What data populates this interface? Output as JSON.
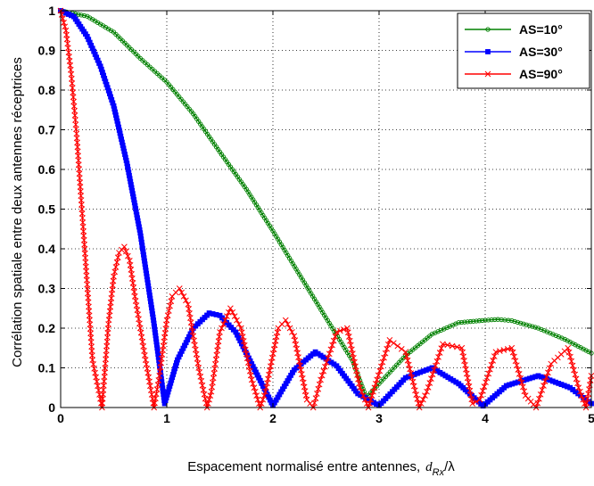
{
  "chart_data": {
    "type": "line",
    "title": "",
    "xlabel": "Espacement normalisé entre antennes,",
    "xlabel_math": {
      "d": "d",
      "sub": "Rx",
      "slash": "/",
      "lambda": "λ"
    },
    "ylabel": "Corrélation spatiale entre deux antennes réceptrices",
    "xlim": [
      0,
      5
    ],
    "ylim": [
      0,
      1
    ],
    "xticks": [
      "0",
      "1",
      "2",
      "3",
      "4",
      "5"
    ],
    "yticks": [
      "0",
      "0.1",
      "0.2",
      "0.3",
      "0.4",
      "0.5",
      "0.6",
      "0.7",
      "0.8",
      "0.9",
      "1"
    ],
    "grid": true,
    "legend_position": "top-right",
    "series": [
      {
        "name": "AS=10°",
        "color": "#008000",
        "marker": "circle",
        "x": [
          0,
          0.25,
          0.5,
          0.75,
          1,
          1.25,
          1.5,
          1.75,
          2,
          2.25,
          2.5,
          2.75,
          2.88,
          3,
          3.25,
          3.5,
          3.75,
          4,
          4.12,
          4.25,
          4.5,
          4.75,
          5
        ],
        "values": [
          1,
          0.986,
          0.946,
          0.88,
          0.82,
          0.74,
          0.644,
          0.55,
          0.445,
          0.335,
          0.226,
          0.118,
          0.025,
          0.06,
          0.131,
          0.185,
          0.214,
          0.22,
          0.222,
          0.219,
          0.2,
          0.172,
          0.137
        ]
      },
      {
        "name": "AS=30°",
        "color": "#0000ff",
        "marker": "square",
        "x": [
          0,
          0.125,
          0.25,
          0.375,
          0.5,
          0.625,
          0.75,
          0.875,
          0.98,
          1.1,
          1.25,
          1.4,
          1.5,
          1.65,
          1.8,
          2,
          2.2,
          2.4,
          2.6,
          2.8,
          3,
          3.25,
          3.5,
          3.75,
          3.98,
          4.2,
          4.5,
          4.8,
          5
        ],
        "values": [
          1,
          0.985,
          0.935,
          0.86,
          0.76,
          0.615,
          0.44,
          0.22,
          0.01,
          0.12,
          0.2,
          0.238,
          0.232,
          0.19,
          0.11,
          0.005,
          0.095,
          0.14,
          0.105,
          0.035,
          0.005,
          0.075,
          0.1,
          0.06,
          0.004,
          0.055,
          0.08,
          0.05,
          0.01
        ]
      },
      {
        "name": "AS=90°",
        "color": "#ff0000",
        "marker": "x",
        "x": [
          0,
          0.05,
          0.1,
          0.15,
          0.2,
          0.25,
          0.3,
          0.39,
          0.45,
          0.5,
          0.55,
          0.6,
          0.65,
          0.7,
          0.8,
          0.88,
          0.93,
          1,
          1.05,
          1.12,
          1.2,
          1.3,
          1.38,
          1.42,
          1.5,
          1.6,
          1.7,
          1.8,
          1.88,
          1.93,
          2.05,
          2.12,
          2.2,
          2.32,
          2.38,
          2.45,
          2.6,
          2.7,
          2.82,
          2.9,
          2.98,
          3.1,
          3.25,
          3.38,
          3.45,
          3.6,
          3.78,
          3.88,
          3.95,
          4.1,
          4.25,
          4.38,
          4.48,
          4.62,
          4.78,
          4.88,
          4.95,
          5
        ],
        "values": [
          1,
          0.95,
          0.84,
          0.69,
          0.5,
          0.31,
          0.12,
          0,
          0.21,
          0.33,
          0.39,
          0.405,
          0.37,
          0.28,
          0.12,
          0,
          0.08,
          0.22,
          0.28,
          0.3,
          0.26,
          0.1,
          0,
          0.04,
          0.19,
          0.25,
          0.2,
          0.07,
          0,
          0.04,
          0.2,
          0.22,
          0.18,
          0.02,
          0,
          0.07,
          0.19,
          0.2,
          0.05,
          0,
          0.07,
          0.17,
          0.14,
          0,
          0.04,
          0.16,
          0.15,
          0.01,
          0.02,
          0.14,
          0.15,
          0.03,
          0,
          0.11,
          0.15,
          0.05,
          0,
          0.08
        ]
      }
    ]
  }
}
